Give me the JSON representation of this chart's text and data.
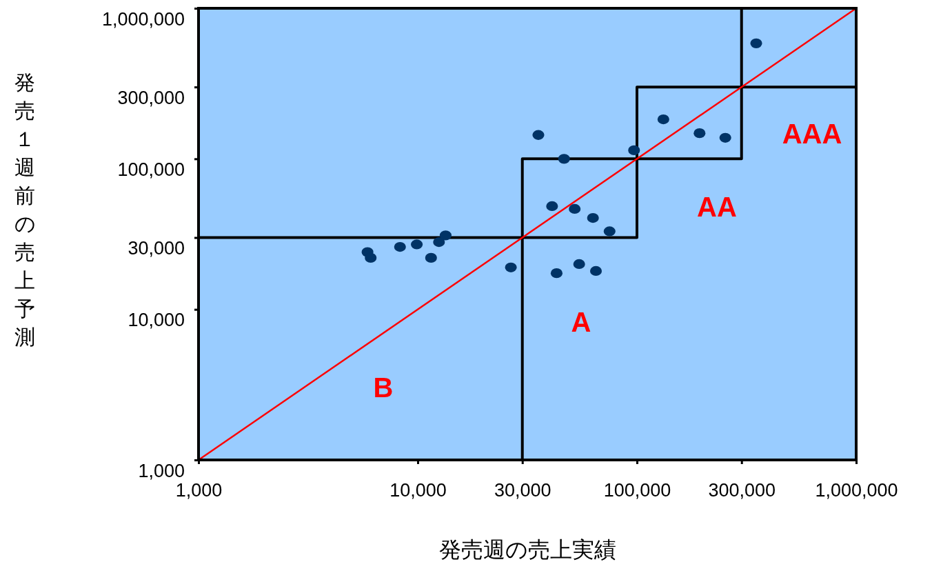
{
  "chart_data": {
    "type": "scatter",
    "xlabel": "発売週の売上実績",
    "ylabel": "発売１週前の売上予測",
    "log": "xy",
    "grid": false,
    "marker": "circle",
    "xlim": [
      1000,
      1000000
    ],
    "ylim": [
      1000,
      1000000
    ],
    "xticks": [
      {
        "value": 1000,
        "label": "1,000"
      },
      {
        "value": 10000,
        "label": "10,000"
      },
      {
        "value": 30000,
        "label": "30,000"
      },
      {
        "value": 100000,
        "label": "100,000"
      },
      {
        "value": 300000,
        "label": "300,000"
      },
      {
        "value": 1000000,
        "label": "1,000,000"
      }
    ],
    "yticks": [
      {
        "value": 1000,
        "label": "1,000"
      },
      {
        "value": 10000,
        "label": "10,000"
      },
      {
        "value": 30000,
        "label": "30,000"
      },
      {
        "value": 100000,
        "label": "100,000"
      },
      {
        "value": 300000,
        "label": "300,000"
      },
      {
        "value": 1000000,
        "label": "1,000,000"
      }
    ],
    "series": [
      {
        "type": "line",
        "marker": "none",
        "color": "#000000",
        "x": [
          1000,
          30000,
          30000,
          100000,
          100000,
          300000,
          300000
        ],
        "values": [
          30000,
          30000,
          100000,
          100000,
          300000,
          300000,
          1000000
        ]
      },
      {
        "type": "line",
        "marker": "none",
        "color": "#000000",
        "x": [
          30000,
          30000,
          100000,
          100000,
          300000,
          300000,
          1000000
        ],
        "values": [
          1000,
          30000,
          30000,
          100000,
          100000,
          300000,
          300000
        ]
      },
      {
        "type": "line",
        "marker": "none",
        "color": "#ff0000",
        "x": [
          1000,
          1000000
        ],
        "values": [
          1000,
          1000000
        ]
      },
      {
        "color": "#003366",
        "x": [
          5900,
          6100,
          8300,
          9900,
          11500,
          12500,
          13400,
          26600,
          35500,
          41000,
          43000,
          46500,
          52000,
          54500,
          63000,
          65000,
          75000,
          97000,
          132000,
          193000,
          253000,
          350000
        ],
        "values": [
          24000,
          22000,
          26000,
          27000,
          22000,
          28000,
          31000,
          19000,
          144000,
          48500,
          17400,
          100000,
          46500,
          20000,
          40500,
          18000,
          33000,
          114000,
          183000,
          148000,
          138000,
          585000
        ]
      }
    ],
    "annotations": [
      "B",
      "A",
      "AA",
      "AAA"
    ]
  }
}
